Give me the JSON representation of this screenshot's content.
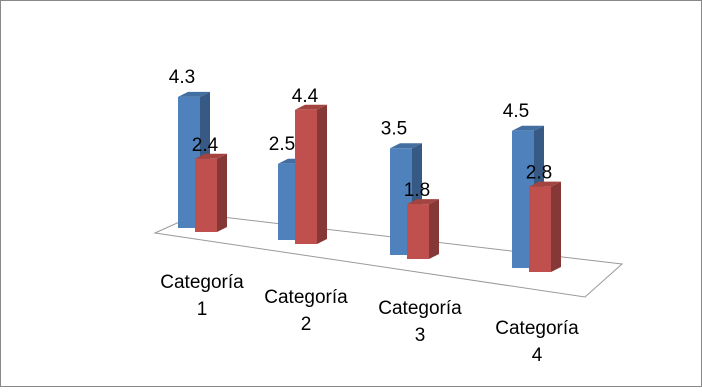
{
  "chart_data": {
    "type": "bar",
    "style": "3d-clustered-column",
    "categories": [
      "Categoría\n1",
      "Categoría\n2",
      "Categoría\n3",
      "Categoría\n4"
    ],
    "series": [
      {
        "values": [
          4.3,
          2.5,
          3.5,
          4.5
        ],
        "color": "#4F81BD"
      },
      {
        "values": [
          2.4,
          4.4,
          1.8,
          2.8
        ],
        "color": "#C0504D"
      }
    ],
    "value_labels": [
      [
        "4.3",
        "2.5",
        "3.5",
        "4.5"
      ],
      [
        "2.4",
        "4.4",
        "1.8",
        "2.8"
      ]
    ],
    "ylim": [
      0,
      5
    ],
    "grid": false,
    "legend": "none"
  }
}
